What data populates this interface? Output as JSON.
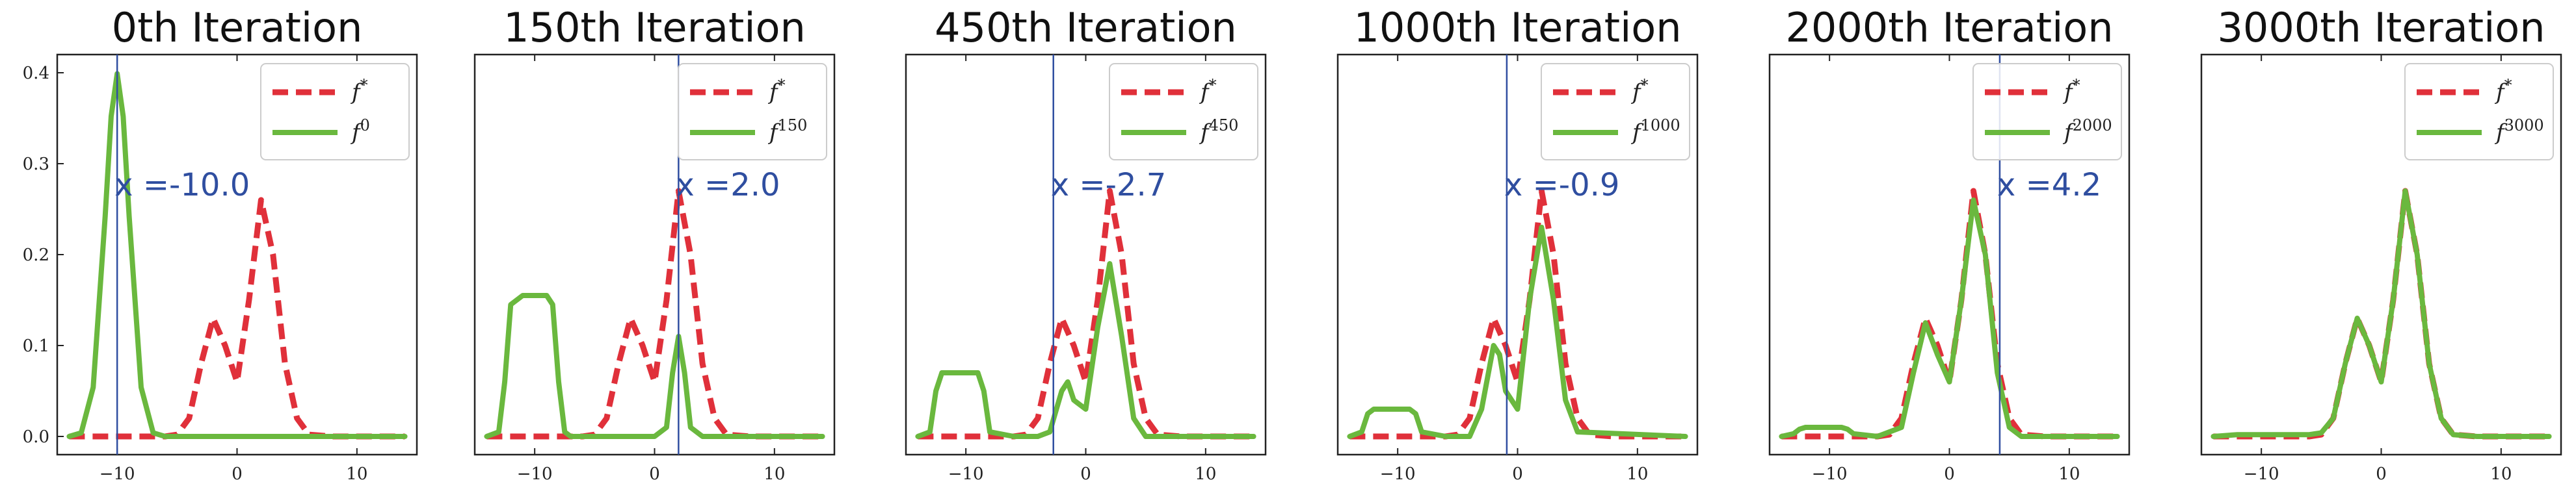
{
  "chart_data": [
    {
      "type": "line",
      "title": "0th Iteration",
      "xlim": [
        -15,
        15
      ],
      "ylim": [
        -0.02,
        0.42
      ],
      "xticks": [
        -10,
        0,
        10
      ],
      "yticks": [
        0.0,
        0.1,
        0.2,
        0.3,
        0.4
      ],
      "show_yticks": true,
      "vline_x": -10.0,
      "annotation": "x =-10.0",
      "legend_position": "top-right",
      "series": [
        {
          "name": "f*",
          "style": "dashed",
          "color": "#e0303a",
          "x": [
            -14,
            -12,
            -10,
            -8,
            -6,
            -5,
            -4,
            -3,
            -2,
            -1,
            0,
            1,
            2,
            3,
            4,
            5,
            6,
            8,
            10,
            12,
            14
          ],
          "y": [
            0,
            0,
            0,
            0,
            0,
            0.002,
            0.02,
            0.08,
            0.13,
            0.1,
            0.06,
            0.15,
            0.26,
            0.2,
            0.08,
            0.02,
            0.002,
            0,
            0,
            0,
            0
          ]
        },
        {
          "name": "f^0",
          "style": "solid",
          "color": "#6ab83e",
          "x": [
            -14,
            -13,
            -12,
            -11,
            -10.5,
            -10,
            -9.5,
            -9,
            -8,
            -7,
            -6,
            -4,
            -2,
            0,
            2,
            4,
            6,
            8,
            10,
            12,
            14
          ],
          "y": [
            0,
            0.004,
            0.054,
            0.242,
            0.352,
            0.399,
            0.352,
            0.242,
            0.054,
            0.004,
            0,
            0,
            0,
            0,
            0,
            0,
            0,
            0,
            0,
            0,
            0
          ]
        }
      ]
    },
    {
      "type": "line",
      "title": "150th Iteration",
      "xlim": [
        -15,
        15
      ],
      "ylim": [
        -0.02,
        0.42
      ],
      "xticks": [
        -10,
        0,
        10
      ],
      "yticks": [],
      "show_yticks": false,
      "vline_x": 2.0,
      "annotation": "x =2.0",
      "legend_position": "top-right",
      "series": [
        {
          "name": "f*",
          "style": "dashed",
          "color": "#e0303a",
          "x": [
            -14,
            -12,
            -10,
            -8,
            -6,
            -5,
            -4,
            -3,
            -2,
            -1,
            0,
            1,
            2,
            3,
            4,
            5,
            6,
            8,
            10,
            12,
            14
          ],
          "y": [
            0,
            0,
            0,
            0,
            0,
            0.002,
            0.02,
            0.08,
            0.13,
            0.1,
            0.06,
            0.15,
            0.27,
            0.2,
            0.08,
            0.02,
            0.002,
            0,
            0,
            0,
            0
          ]
        },
        {
          "name": "f^150",
          "style": "solid",
          "color": "#6ab83e",
          "x": [
            -14,
            -13,
            -12.5,
            -12,
            -11,
            -10,
            -9,
            -8.5,
            -8,
            -7.5,
            -7,
            -4,
            0,
            1,
            1.5,
            2,
            2.5,
            3,
            4,
            8,
            14
          ],
          "y": [
            0,
            0.005,
            0.06,
            0.145,
            0.155,
            0.155,
            0.155,
            0.145,
            0.06,
            0.005,
            0,
            0,
            0,
            0.01,
            0.07,
            0.11,
            0.07,
            0.01,
            0,
            0,
            0
          ]
        }
      ]
    },
    {
      "type": "line",
      "title": "450th Iteration",
      "xlim": [
        -15,
        15
      ],
      "ylim": [
        -0.02,
        0.42
      ],
      "xticks": [
        -10,
        0,
        10
      ],
      "yticks": [],
      "show_yticks": false,
      "vline_x": -2.7,
      "annotation": "x =-2.7",
      "legend_position": "top-right",
      "series": [
        {
          "name": "f*",
          "style": "dashed",
          "color": "#e0303a",
          "x": [
            -14,
            -12,
            -10,
            -8,
            -6,
            -5,
            -4,
            -3,
            -2,
            -1,
            0,
            1,
            2,
            3,
            4,
            5,
            6,
            8,
            10,
            12,
            14
          ],
          "y": [
            0,
            0,
            0,
            0,
            0,
            0.002,
            0.02,
            0.08,
            0.13,
            0.1,
            0.06,
            0.15,
            0.27,
            0.2,
            0.08,
            0.02,
            0.002,
            0,
            0,
            0,
            0
          ]
        },
        {
          "name": "f^450",
          "style": "solid",
          "color": "#6ab83e",
          "x": [
            -14,
            -13,
            -12.5,
            -12,
            -10,
            -9,
            -8.5,
            -8,
            -6,
            -4,
            -3,
            -2,
            -1.5,
            -1,
            0,
            1,
            2,
            3,
            4,
            5,
            14
          ],
          "y": [
            0,
            0.005,
            0.05,
            0.07,
            0.07,
            0.07,
            0.05,
            0.005,
            0,
            0,
            0.005,
            0.05,
            0.06,
            0.04,
            0.03,
            0.12,
            0.19,
            0.11,
            0.02,
            0,
            0
          ]
        }
      ]
    },
    {
      "type": "line",
      "title": "1000th Iteration",
      "xlim": [
        -15,
        15
      ],
      "ylim": [
        -0.02,
        0.42
      ],
      "xticks": [
        -10,
        0,
        10
      ],
      "yticks": [],
      "show_yticks": false,
      "vline_x": -0.9,
      "annotation": "x =-0.9",
      "legend_position": "top-right",
      "series": [
        {
          "name": "f*",
          "style": "dashed",
          "color": "#e0303a",
          "x": [
            -14,
            -12,
            -10,
            -8,
            -6,
            -5,
            -4,
            -3,
            -2,
            -1,
            0,
            1,
            2,
            3,
            4,
            5,
            6,
            8,
            10,
            12,
            14
          ],
          "y": [
            0,
            0,
            0,
            0,
            0,
            0.002,
            0.02,
            0.08,
            0.13,
            0.1,
            0.06,
            0.15,
            0.27,
            0.2,
            0.08,
            0.02,
            0.002,
            0,
            0,
            0,
            0
          ]
        },
        {
          "name": "f^1000",
          "style": "solid",
          "color": "#6ab83e",
          "x": [
            -14,
            -13,
            -12.5,
            -12,
            -10,
            -9,
            -8.5,
            -8,
            -6,
            -4,
            -3,
            -2,
            -1.5,
            -1,
            0,
            1,
            2,
            3,
            4,
            5,
            14
          ],
          "y": [
            0,
            0.005,
            0.025,
            0.03,
            0.03,
            0.03,
            0.025,
            0.005,
            0,
            0,
            0.03,
            0.1,
            0.09,
            0.05,
            0.03,
            0.15,
            0.23,
            0.15,
            0.04,
            0.005,
            0
          ]
        }
      ]
    },
    {
      "type": "line",
      "title": "2000th Iteration",
      "xlim": [
        -15,
        15
      ],
      "ylim": [
        -0.02,
        0.42
      ],
      "xticks": [
        -10,
        0,
        10
      ],
      "yticks": [],
      "show_yticks": false,
      "vline_x": 4.2,
      "annotation": "x =4.2",
      "legend_position": "top-right",
      "series": [
        {
          "name": "f*",
          "style": "dashed",
          "color": "#e0303a",
          "x": [
            -14,
            -12,
            -10,
            -8,
            -6,
            -5,
            -4,
            -3,
            -2,
            -1,
            0,
            1,
            2,
            3,
            4,
            5,
            6,
            8,
            10,
            12,
            14
          ],
          "y": [
            0,
            0,
            0,
            0,
            0,
            0.002,
            0.02,
            0.08,
            0.13,
            0.1,
            0.06,
            0.15,
            0.27,
            0.2,
            0.08,
            0.02,
            0.002,
            0,
            0,
            0,
            0
          ]
        },
        {
          "name": "f^2000",
          "style": "solid",
          "color": "#6ab83e",
          "x": [
            -14,
            -13,
            -12.5,
            -12,
            -10,
            -9,
            -8.5,
            -8,
            -6,
            -4,
            -3,
            -2,
            -1,
            0,
            1,
            2,
            3,
            4,
            5,
            6,
            14
          ],
          "y": [
            0,
            0.003,
            0.008,
            0.01,
            0.01,
            0.01,
            0.008,
            0.003,
            0,
            0.01,
            0.07,
            0.125,
            0.09,
            0.06,
            0.15,
            0.26,
            0.2,
            0.07,
            0.01,
            0,
            0
          ]
        }
      ]
    },
    {
      "type": "line",
      "title": "3000th Iteration",
      "xlim": [
        -15,
        15
      ],
      "ylim": [
        -0.02,
        0.42
      ],
      "xticks": [
        -10,
        0,
        10
      ],
      "yticks": [],
      "show_yticks": false,
      "vline_x": null,
      "annotation": "",
      "legend_position": "top-right",
      "series": [
        {
          "name": "f*",
          "style": "dashed",
          "color": "#e0303a",
          "x": [
            -14,
            -12,
            -10,
            -8,
            -6,
            -5,
            -4,
            -3,
            -2,
            -1,
            0,
            1,
            2,
            3,
            4,
            5,
            6,
            8,
            10,
            12,
            14
          ],
          "y": [
            0,
            0,
            0,
            0,
            0,
            0.002,
            0.02,
            0.08,
            0.13,
            0.1,
            0.06,
            0.15,
            0.27,
            0.2,
            0.08,
            0.02,
            0.002,
            0,
            0,
            0,
            0
          ]
        },
        {
          "name": "f^3000",
          "style": "solid",
          "color": "#6ab83e",
          "x": [
            -14,
            -12,
            -10,
            -8,
            -6,
            -5,
            -4,
            -3,
            -2,
            -1,
            0,
            1,
            2,
            3,
            4,
            5,
            6,
            8,
            10,
            12,
            14
          ],
          "y": [
            0,
            0.002,
            0.002,
            0.002,
            0.002,
            0.004,
            0.02,
            0.08,
            0.13,
            0.1,
            0.06,
            0.15,
            0.27,
            0.2,
            0.08,
            0.02,
            0.002,
            0,
            0,
            0,
            0
          ]
        }
      ]
    }
  ],
  "legend": {
    "series_labels": [
      {
        "base": "f",
        "sup": "*"
      },
      {
        "base": "f",
        "sup": "0"
      },
      {
        "base": "f",
        "sup": "150"
      },
      {
        "base": "f",
        "sup": "450"
      },
      {
        "base": "f",
        "sup": "1000"
      },
      {
        "base": "f",
        "sup": "2000"
      },
      {
        "base": "f",
        "sup": "3000"
      }
    ]
  },
  "colors": {
    "target": "#e0303a",
    "estimate": "#6ab83e",
    "vline": "#2f4ea0"
  }
}
